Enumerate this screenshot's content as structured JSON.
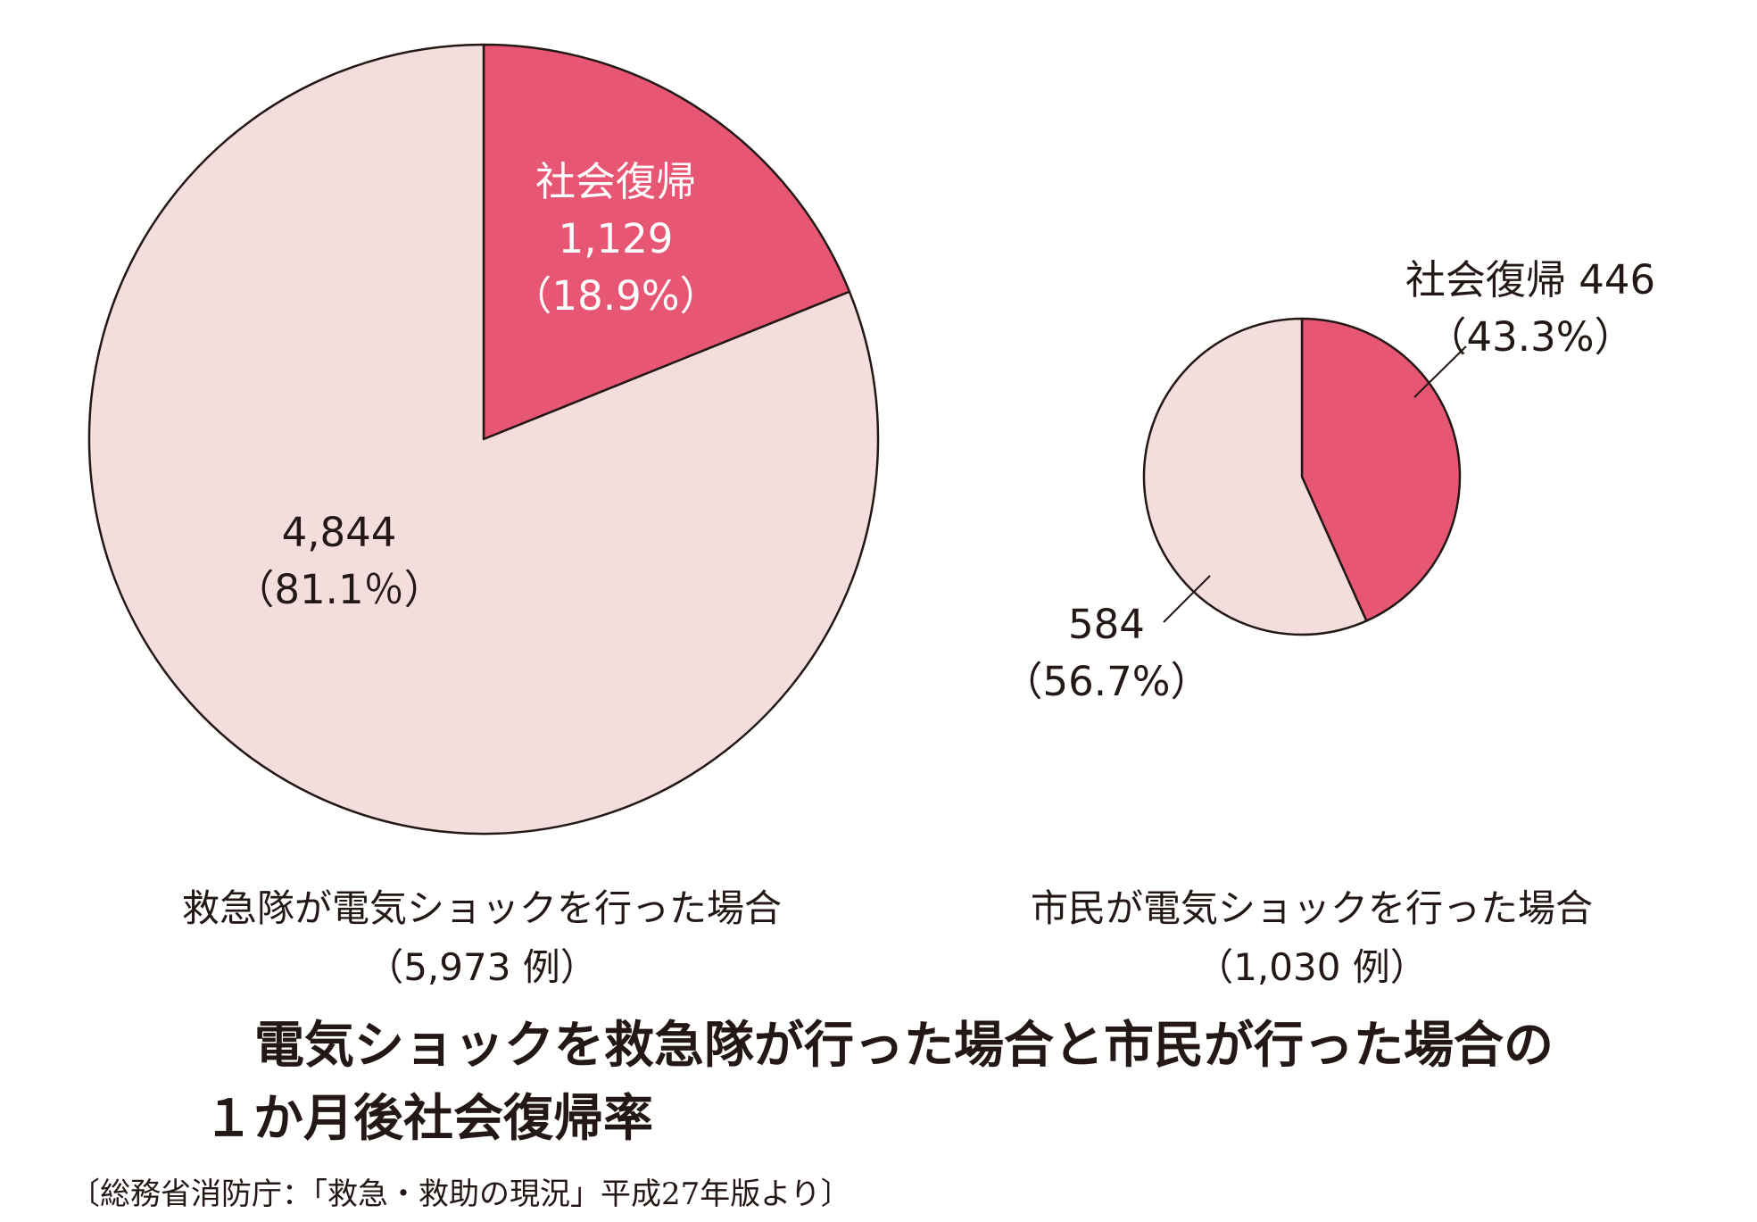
{
  "title": {
    "line1": "電気ショックを救急隊が行った場合と市民が行った場合の",
    "line2": "１か月後社会復帰率"
  },
  "source": "〔総務省消防庁：「救急・救助の現況」平成27年版より〕",
  "colors": {
    "social_return": "#e75672",
    "other": "#f4dddd",
    "outline": "#231815"
  },
  "chart_data": [
    {
      "type": "pie",
      "caption": "救急隊が電気ショックを行った場合",
      "total_label": "（5,973 例）",
      "total": 5973,
      "slices": [
        {
          "category": "社会復帰",
          "value": 1129,
          "percent": 18.9,
          "value_label": "1,129",
          "percent_label": "（18.9%）",
          "color": "#e75672"
        },
        {
          "value": 4844,
          "percent": 81.1,
          "value_label": "4,844",
          "percent_label": "（81.1％）",
          "color": "#f4dddd"
        }
      ]
    },
    {
      "type": "pie",
      "caption": "市民が電気ショックを行った場合",
      "total_label": "（1,030 例）",
      "total": 1030,
      "slices": [
        {
          "category": "社会復帰",
          "value": 446,
          "percent": 43.3,
          "value_label": "446",
          "percent_label": "（43.3%）",
          "color": "#e75672"
        },
        {
          "value": 584,
          "percent": 56.7,
          "value_label": "584",
          "percent_label": "（56.7%）",
          "color": "#f4dddd"
        }
      ]
    }
  ]
}
